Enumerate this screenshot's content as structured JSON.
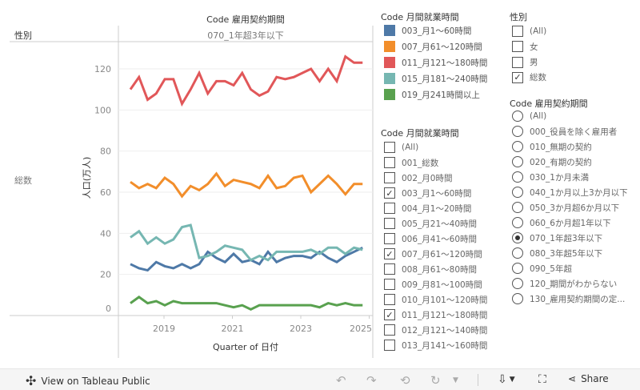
{
  "header": {
    "column_title": "Code 雇用契約期間",
    "column_value": "070_1年超3年以下",
    "row_title": "性別",
    "row_value": "総数"
  },
  "chart_data": {
    "type": "line",
    "title": "",
    "xlabel": "Quarter of 日付",
    "ylabel": "人口(万人)",
    "ylim": [
      0,
      130
    ],
    "yticks": [
      "0",
      "20",
      "40",
      "60",
      "80",
      "100",
      "120"
    ],
    "xticks": [
      "2019",
      "2021",
      "2023",
      "2025"
    ],
    "x": [
      "2018Q1",
      "2018Q2",
      "2018Q3",
      "2018Q4",
      "2019Q1",
      "2019Q2",
      "2019Q3",
      "2019Q4",
      "2020Q1",
      "2020Q2",
      "2020Q3",
      "2020Q4",
      "2021Q1",
      "2021Q2",
      "2021Q3",
      "2021Q4",
      "2022Q1",
      "2022Q2",
      "2022Q3",
      "2022Q4",
      "2023Q1",
      "2023Q2",
      "2023Q3",
      "2023Q4",
      "2024Q1",
      "2024Q2",
      "2024Q3",
      "2024Q4"
    ],
    "grid": true,
    "series": [
      {
        "name": "003_月1～60時間",
        "color": "#4e79a7",
        "values": [
          25,
          23,
          22,
          26,
          24,
          23,
          25,
          23,
          25,
          31,
          28,
          26,
          30,
          26,
          27,
          25,
          31,
          26,
          28,
          29,
          29,
          28,
          31,
          28,
          26,
          29,
          31,
          33
        ]
      },
      {
        "name": "007_月61～120時間",
        "color": "#f28e2b",
        "values": [
          65,
          62,
          64,
          62,
          67,
          64,
          58,
          63,
          61,
          64,
          69,
          63,
          66,
          65,
          64,
          62,
          68,
          62,
          63,
          67,
          68,
          60,
          64,
          68,
          64,
          59,
          64,
          64
        ]
      },
      {
        "name": "011_月121～180時間",
        "color": "#e15759",
        "values": [
          110,
          116,
          105,
          108,
          115,
          115,
          103,
          110,
          118,
          108,
          114,
          114,
          112,
          118,
          110,
          107,
          109,
          116,
          115,
          116,
          118,
          120,
          114,
          120,
          114,
          126,
          123,
          123
        ]
      },
      {
        "name": "015_月181～240時間",
        "color": "#76b7b2",
        "values": [
          38,
          41,
          35,
          38,
          35,
          37,
          43,
          44,
          28,
          29,
          31,
          34,
          33,
          32,
          27,
          29,
          27,
          31,
          31,
          31,
          31,
          32,
          30,
          33,
          33,
          30,
          33,
          32
        ]
      },
      {
        "name": "019_月241時間以上",
        "color": "#59a14f",
        "values": [
          6,
          9,
          6,
          7,
          5,
          7,
          6,
          6,
          6,
          6,
          6,
          5,
          4,
          5,
          3,
          5,
          5,
          5,
          5,
          5,
          5,
          5,
          4,
          6,
          5,
          6,
          5,
          5
        ]
      }
    ]
  },
  "legend": {
    "title": "Code 月間就業時間"
  },
  "filter_hours": {
    "title": "Code 月間就業時間",
    "items": [
      {
        "label": "(All)",
        "checked": false
      },
      {
        "label": "001_総数",
        "checked": false
      },
      {
        "label": "002_月0時間",
        "checked": false
      },
      {
        "label": "003_月1～60時間",
        "checked": true
      },
      {
        "label": "004_月1～20時間",
        "checked": false
      },
      {
        "label": "005_月21～40時間",
        "checked": false
      },
      {
        "label": "006_月41～60時間",
        "checked": false
      },
      {
        "label": "007_月61～120時間",
        "checked": true
      },
      {
        "label": "008_月61～80時間",
        "checked": false
      },
      {
        "label": "009_月81～100時間",
        "checked": false
      },
      {
        "label": "010_月101～120時間",
        "checked": false
      },
      {
        "label": "011_月121～180時間",
        "checked": true
      },
      {
        "label": "012_月121～140時間",
        "checked": false
      },
      {
        "label": "013_月141～160時間",
        "checked": false
      }
    ]
  },
  "filter_sex": {
    "title": "性別",
    "items": [
      {
        "label": "(All)",
        "checked": false
      },
      {
        "label": "女",
        "checked": false
      },
      {
        "label": "男",
        "checked": false
      },
      {
        "label": "総数",
        "checked": true
      }
    ]
  },
  "filter_contract": {
    "title": "Code 雇用契約期間",
    "items": [
      {
        "label": "(All)",
        "selected": false
      },
      {
        "label": "000_役員を除く雇用者",
        "selected": false
      },
      {
        "label": "010_無期の契約",
        "selected": false
      },
      {
        "label": "020_有期の契約",
        "selected": false
      },
      {
        "label": "030_1か月未満",
        "selected": false
      },
      {
        "label": "040_1か月以上3か月以下",
        "selected": false
      },
      {
        "label": "050_3か月超6か月以下",
        "selected": false
      },
      {
        "label": "060_6か月超1年以下",
        "selected": false
      },
      {
        "label": "070_1年超3年以下",
        "selected": true
      },
      {
        "label": "080_3年超5年以下",
        "selected": false
      },
      {
        "label": "090_5年超",
        "selected": false
      },
      {
        "label": "120_期間がわからない",
        "selected": false
      },
      {
        "label": "130_雇用契約期間の定..."
      }
    ]
  },
  "toolbar": {
    "view_label": "View on Tableau Public",
    "share_label": "Share"
  },
  "icons": {
    "check": "✓"
  }
}
